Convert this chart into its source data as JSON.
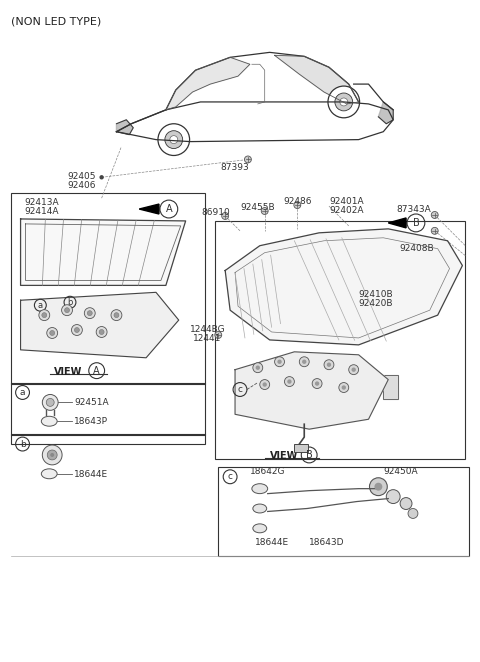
{
  "bg_color": "#ffffff",
  "line_color": "#333333",
  "fig_width": 4.8,
  "fig_height": 6.62,
  "dpi": 100,
  "labels": {
    "non_led": "(NON LED TYPE)",
    "car_label": "87393",
    "lbl_92405": "92405",
    "lbl_92406": "92406",
    "lbl_92413A": "92413A",
    "lbl_92414A": "92414A",
    "view_a": "VIEW",
    "circ_A": "A",
    "view_b": "VIEW",
    "circ_B": "B",
    "lbl_86910": "86910",
    "lbl_92486": "92486",
    "lbl_92455B": "92455B",
    "lbl_92401A": "92401A",
    "lbl_92402A": "92402A",
    "lbl_87343A": "87343A",
    "lbl_92408B": "92408B",
    "lbl_92410B": "92410B",
    "lbl_92420B": "92420B",
    "lbl_1244BG": "1244BG",
    "lbl_12441": "12441",
    "lbl_92451A": "92451A",
    "lbl_18643P": "18643P",
    "lbl_18644E_b": "18644E",
    "lbl_18642G": "18642G",
    "lbl_92450A": "92450A",
    "lbl_18644E_c": "18644E",
    "lbl_18643D": "18643D"
  }
}
